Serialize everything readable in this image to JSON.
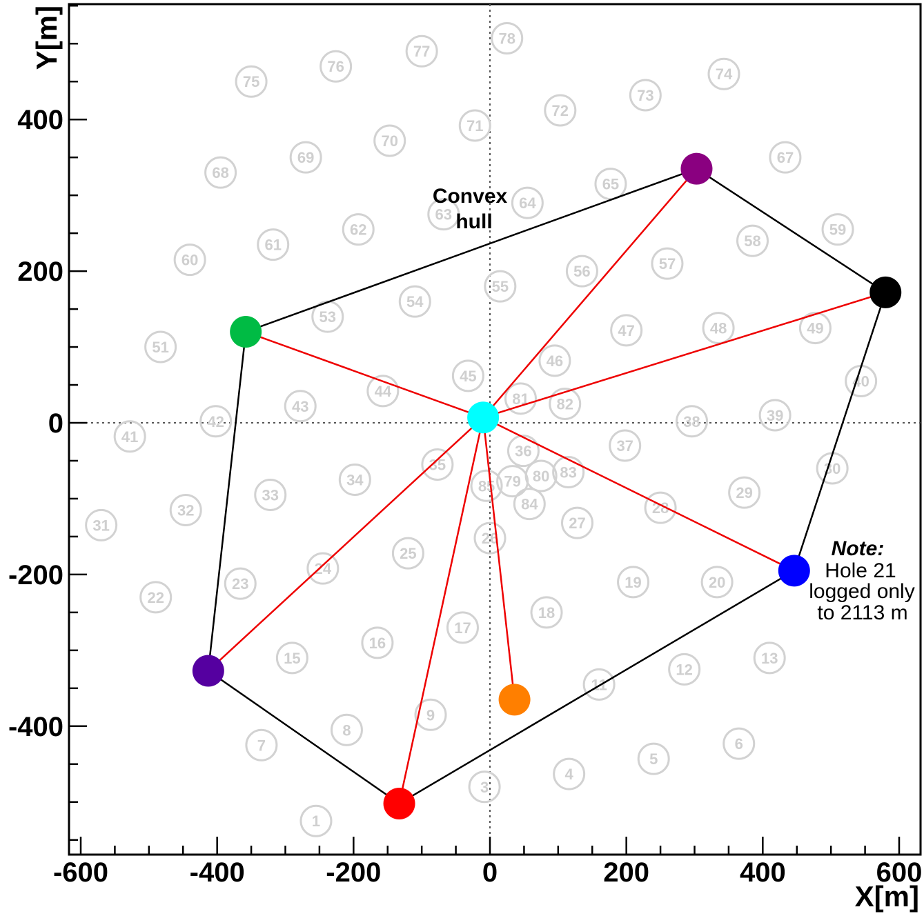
{
  "chart_data": {
    "type": "scatter",
    "xlabel": "X[m]",
    "ylabel": "Y[m]",
    "xlim": [
      -620,
      630
    ],
    "ylim": [
      -560,
      555
    ],
    "x_ticks": [
      -600,
      -400,
      -200,
      0,
      200,
      400,
      600
    ],
    "y_ticks": [
      -400,
      -200,
      0,
      200,
      400
    ],
    "x_tick_labels": [
      "-600",
      "-400",
      "-200",
      "0",
      "200",
      "400",
      "600"
    ],
    "y_tick_labels": [
      "-400",
      "-200",
      "0",
      "200",
      "400"
    ],
    "grid": false,
    "reference_lines": [
      "x = 0 (dotted)",
      "y = 0 (dotted)"
    ],
    "holes": [
      {
        "label": "1",
        "x": -255,
        "y": -525
      },
      {
        "label": "3",
        "x": -8,
        "y": -480
      },
      {
        "label": "4",
        "x": 116,
        "y": -463
      },
      {
        "label": "5",
        "x": 240,
        "y": -443
      },
      {
        "label": "6",
        "x": 365,
        "y": -423
      },
      {
        "label": "7",
        "x": -335,
        "y": -425
      },
      {
        "label": "8",
        "x": -210,
        "y": -405
      },
      {
        "label": "9",
        "x": -87,
        "y": -385
      },
      {
        "label": "11",
        "x": 160,
        "y": -345
      },
      {
        "label": "12",
        "x": 285,
        "y": -325
      },
      {
        "label": "13",
        "x": 410,
        "y": -310
      },
      {
        "label": "15",
        "x": -290,
        "y": -310
      },
      {
        "label": "16",
        "x": -165,
        "y": -290
      },
      {
        "label": "17",
        "x": -40,
        "y": -270
      },
      {
        "label": "18",
        "x": 83,
        "y": -250
      },
      {
        "label": "19",
        "x": 210,
        "y": -210
      },
      {
        "label": "20",
        "x": 333,
        "y": -210
      },
      {
        "label": "22",
        "x": -490,
        "y": -230
      },
      {
        "label": "23",
        "x": -366,
        "y": -212
      },
      {
        "label": "24",
        "x": -245,
        "y": -192
      },
      {
        "label": "25",
        "x": -120,
        "y": -172
      },
      {
        "label": "26",
        "x": 0,
        "y": -152
      },
      {
        "label": "27",
        "x": 128,
        "y": -132
      },
      {
        "label": "28",
        "x": 250,
        "y": -112
      },
      {
        "label": "29",
        "x": 373,
        "y": -92
      },
      {
        "label": "30",
        "x": 502,
        "y": -60
      },
      {
        "label": "31",
        "x": -570,
        "y": -135
      },
      {
        "label": "32",
        "x": -446,
        "y": -115
      },
      {
        "label": "33",
        "x": -322,
        "y": -95
      },
      {
        "label": "34",
        "x": -198,
        "y": -75
      },
      {
        "label": "35",
        "x": -77,
        "y": -55
      },
      {
        "label": "36",
        "x": 49,
        "y": -37
      },
      {
        "label": "37",
        "x": 198,
        "y": -30
      },
      {
        "label": "38",
        "x": 296,
        "y": 2
      },
      {
        "label": "39",
        "x": 418,
        "y": 10
      },
      {
        "label": "40",
        "x": 544,
        "y": 55
      },
      {
        "label": "41",
        "x": -528,
        "y": -18
      },
      {
        "label": "42",
        "x": -402,
        "y": 2
      },
      {
        "label": "43",
        "x": -278,
        "y": 22
      },
      {
        "label": "44",
        "x": -157,
        "y": 42
      },
      {
        "label": "45",
        "x": -32,
        "y": 62
      },
      {
        "label": "46",
        "x": 95,
        "y": 82
      },
      {
        "label": "47",
        "x": 200,
        "y": 122
      },
      {
        "label": "48",
        "x": 335,
        "y": 125
      },
      {
        "label": "49",
        "x": 477,
        "y": 125
      },
      {
        "label": "51",
        "x": -483,
        "y": 100
      },
      {
        "label": "53",
        "x": -238,
        "y": 140
      },
      {
        "label": "54",
        "x": -110,
        "y": 160
      },
      {
        "label": "55",
        "x": 15,
        "y": 180
      },
      {
        "label": "56",
        "x": 135,
        "y": 200
      },
      {
        "label": "57",
        "x": 260,
        "y": 210
      },
      {
        "label": "58",
        "x": 385,
        "y": 240
      },
      {
        "label": "59",
        "x": 510,
        "y": 255
      },
      {
        "label": "60",
        "x": -440,
        "y": 215
      },
      {
        "label": "61",
        "x": -318,
        "y": 235
      },
      {
        "label": "62",
        "x": -193,
        "y": 255
      },
      {
        "label": "63",
        "x": -68,
        "y": 275
      },
      {
        "label": "64",
        "x": 55,
        "y": 290
      },
      {
        "label": "65",
        "x": 177,
        "y": 315
      },
      {
        "label": "67",
        "x": 433,
        "y": 350
      },
      {
        "label": "68",
        "x": -395,
        "y": 330
      },
      {
        "label": "69",
        "x": -270,
        "y": 350
      },
      {
        "label": "70",
        "x": -147,
        "y": 372
      },
      {
        "label": "71",
        "x": -22,
        "y": 392
      },
      {
        "label": "72",
        "x": 103,
        "y": 412
      },
      {
        "label": "73",
        "x": 228,
        "y": 432
      },
      {
        "label": "74",
        "x": 343,
        "y": 460
      },
      {
        "label": "75",
        "x": -350,
        "y": 450
      },
      {
        "label": "76",
        "x": -226,
        "y": 470
      },
      {
        "label": "77",
        "x": -100,
        "y": 490
      },
      {
        "label": "78",
        "x": 25,
        "y": 507
      },
      {
        "label": "79",
        "x": 33,
        "y": -77
      },
      {
        "label": "80",
        "x": 75,
        "y": -70
      },
      {
        "label": "81",
        "x": 45,
        "y": 32
      },
      {
        "label": "82",
        "x": 110,
        "y": 25
      },
      {
        "label": "83",
        "x": 115,
        "y": -65
      },
      {
        "label": "84",
        "x": 58,
        "y": -107
      },
      {
        "label": "85",
        "x": -5,
        "y": -83
      }
    ],
    "colored_holes": [
      {
        "color": "#00ffff",
        "x": -10,
        "y": 7
      },
      {
        "color": "#00bb44",
        "x": -358,
        "y": 120
      },
      {
        "color": "#8a0080",
        "x": 303,
        "y": 335
      },
      {
        "color": "#000000",
        "x": 580,
        "y": 172
      },
      {
        "color": "#0000ff",
        "x": 446,
        "y": -195
      },
      {
        "color": "#ff7f00",
        "x": 36,
        "y": -365
      },
      {
        "color": "#ff0000",
        "x": -133,
        "y": -502
      },
      {
        "color": "#5500a0",
        "x": -413,
        "y": -327
      }
    ],
    "convex_hull": [
      [
        -358,
        120
      ],
      [
        303,
        335
      ],
      [
        580,
        172
      ],
      [
        446,
        -195
      ],
      [
        -133,
        -502
      ],
      [
        -413,
        -327
      ],
      [
        -358,
        120
      ]
    ],
    "radial_lines_from": [
      -10,
      7
    ],
    "radial_lines_to": [
      [
        -358,
        120
      ],
      [
        303,
        335
      ],
      [
        580,
        172
      ],
      [
        446,
        -195
      ],
      [
        36,
        -365
      ],
      [
        -133,
        -502
      ],
      [
        -413,
        -327
      ]
    ],
    "hull_label": [
      "Convex",
      "hull"
    ],
    "note": {
      "title": "Note:",
      "lines": [
        "Hole 21",
        "logged only",
        "to 2113 m"
      ]
    }
  }
}
